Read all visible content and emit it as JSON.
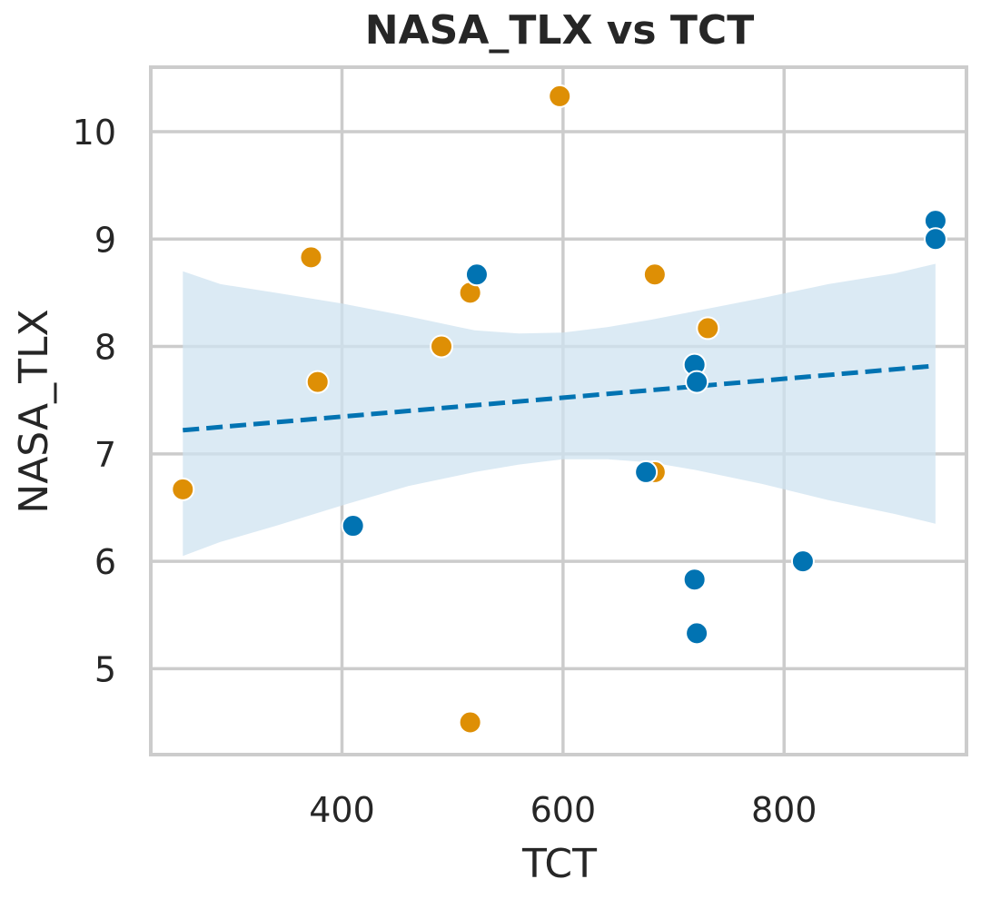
{
  "chart_data": {
    "type": "scatter",
    "title": "NASA_TLX vs TCT",
    "xlabel": "TCT",
    "ylabel": "NASA_TLX",
    "xlim": [
      227,
      965
    ],
    "ylim": [
      4.2,
      10.6
    ],
    "xticks": [
      400,
      600,
      800
    ],
    "yticks": [
      5,
      6,
      7,
      8,
      9,
      10
    ],
    "grid": true,
    "colors": {
      "group_a": "#0173b2",
      "group_b": "#de8f05",
      "ci_band": "#cfe3f0",
      "grid": "#cccccc",
      "text": "#262626"
    },
    "series": [
      {
        "color": "#de8f05",
        "points": [
          {
            "x": 256,
            "y": 6.67
          },
          {
            "x": 372,
            "y": 8.83
          },
          {
            "x": 378,
            "y": 7.67
          },
          {
            "x": 490,
            "y": 8.0
          },
          {
            "x": 516,
            "y": 8.5
          },
          {
            "x": 516,
            "y": 4.5
          },
          {
            "x": 597,
            "y": 10.33
          },
          {
            "x": 683,
            "y": 8.67
          },
          {
            "x": 683,
            "y": 6.83
          },
          {
            "x": 731,
            "y": 8.17
          }
        ]
      },
      {
        "color": "#0173b2",
        "points": [
          {
            "x": 410,
            "y": 6.33
          },
          {
            "x": 522,
            "y": 8.67
          },
          {
            "x": 675,
            "y": 6.83
          },
          {
            "x": 719,
            "y": 7.83
          },
          {
            "x": 721,
            "y": 7.67
          },
          {
            "x": 719,
            "y": 5.83
          },
          {
            "x": 721,
            "y": 5.33
          },
          {
            "x": 817,
            "y": 6.0
          },
          {
            "x": 937,
            "y": 9.17
          },
          {
            "x": 937,
            "y": 9.0
          }
        ]
      }
    ],
    "regression": {
      "style": "dashed",
      "color": "#0173b2",
      "x": [
        256,
        937
      ],
      "y": [
        7.22,
        7.82
      ]
    },
    "confidence_band": {
      "x": [
        256,
        290,
        340,
        400,
        460,
        520,
        560,
        600,
        640,
        680,
        720,
        780,
        840,
        900,
        937
      ],
      "upper": [
        8.7,
        8.58,
        8.5,
        8.4,
        8.28,
        8.15,
        8.12,
        8.13,
        8.18,
        8.25,
        8.33,
        8.45,
        8.58,
        8.68,
        8.77
      ],
      "lower": [
        6.05,
        6.18,
        6.33,
        6.52,
        6.7,
        6.83,
        6.9,
        6.95,
        6.95,
        6.92,
        6.85,
        6.72,
        6.57,
        6.44,
        6.35
      ]
    }
  }
}
